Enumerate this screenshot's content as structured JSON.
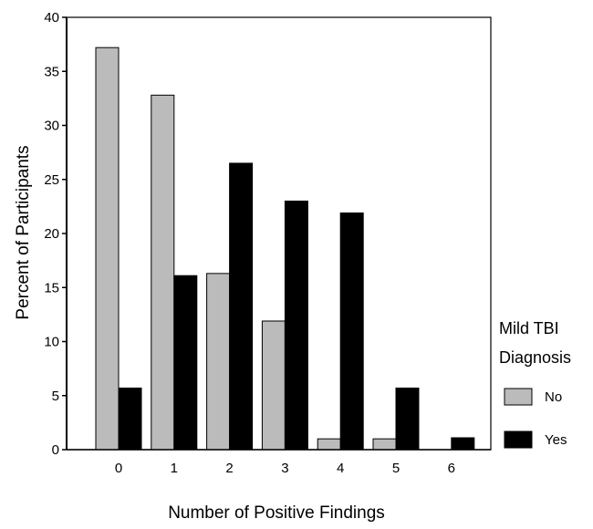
{
  "chart_data": {
    "type": "bar",
    "title": "",
    "xlabel": "Number of Positive Findings",
    "ylabel": "Percent of Participants",
    "categories": [
      "0",
      "1",
      "2",
      "3",
      "4",
      "5",
      "6"
    ],
    "ylim": [
      0,
      40
    ],
    "yticks": [
      "0",
      "5",
      "10",
      "15",
      "20",
      "25",
      "30",
      "35",
      "40"
    ],
    "grid": false,
    "legend": {
      "title_line1": "Mild TBI",
      "title_line2": "Diagnosis",
      "placement": "right"
    },
    "series": [
      {
        "name": "No",
        "color": "#bbbbbb",
        "values": [
          37.2,
          32.8,
          16.3,
          11.9,
          1.0,
          1.0,
          0.0
        ]
      },
      {
        "name": "Yes",
        "color": "#000000",
        "values": [
          5.7,
          16.1,
          26.5,
          23.0,
          21.9,
          5.7,
          1.1
        ]
      }
    ]
  }
}
